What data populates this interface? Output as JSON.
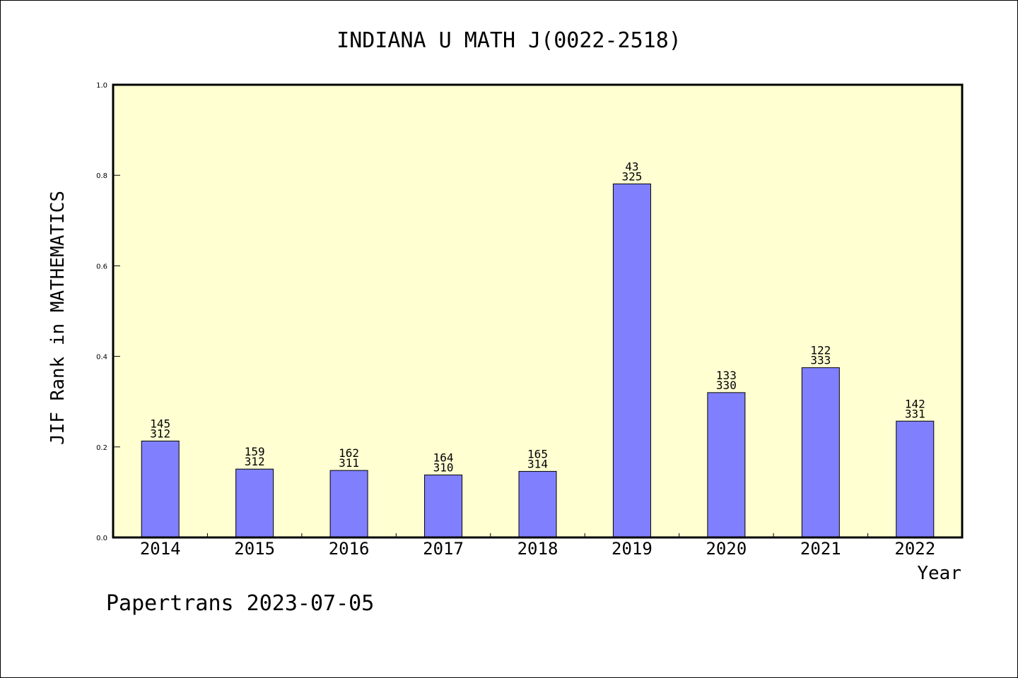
{
  "chart_data": {
    "type": "bar",
    "title": "INDIANA U MATH J(0022-2518)",
    "xlabel": "Year",
    "ylabel": "JIF Rank in MATHEMATICS",
    "ylim": [
      0,
      1.0
    ],
    "yticks": [
      "0.0",
      "0.2",
      "0.4",
      "0.6",
      "0.8",
      "1.0"
    ],
    "categories": [
      "2014",
      "2015",
      "2016",
      "2017",
      "2018",
      "2019",
      "2020",
      "2021",
      "2022"
    ],
    "values": [
      0.213,
      0.151,
      0.148,
      0.138,
      0.146,
      0.781,
      0.32,
      0.375,
      0.257
    ],
    "labels_top": [
      "145",
      "159",
      "162",
      "164",
      "165",
      "43",
      "133",
      "122",
      "142"
    ],
    "labels_bottom": [
      "312",
      "312",
      "311",
      "310",
      "314",
      "325",
      "330",
      "333",
      "331"
    ],
    "grid": false,
    "colors": {
      "plot_bg": "#ffffd2",
      "bar_fill": "#8080ff",
      "bar_stroke": "#000000"
    }
  },
  "footer": "Papertrans 2023-07-05"
}
